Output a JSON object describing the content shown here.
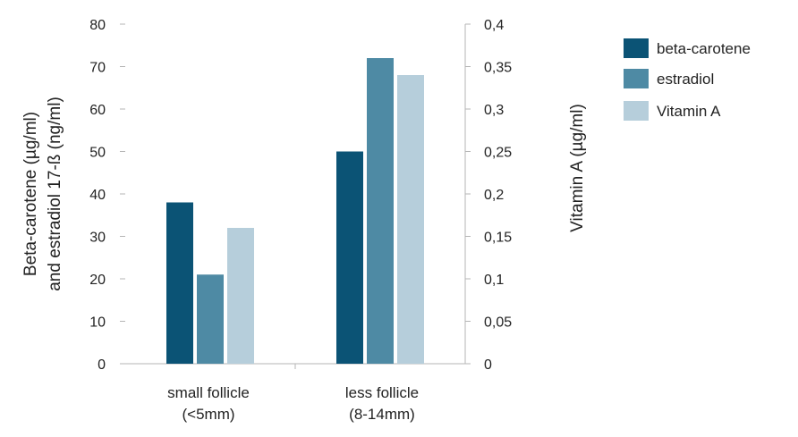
{
  "chart_data": {
    "type": "bar",
    "categories": [
      [
        "small follicle",
        "(<5mm)"
      ],
      [
        "less  follicle",
        "(8-14mm)"
      ]
    ],
    "series": [
      {
        "name": "beta-carotene",
        "axis": "left",
        "values": [
          38,
          50
        ],
        "color": "#0b5375"
      },
      {
        "name": "estradiol",
        "axis": "left",
        "values": [
          21,
          72
        ],
        "color": "#4e8aa4"
      },
      {
        "name": "Vitamin A",
        "axis": "right",
        "values": [
          0.16,
          0.34
        ],
        "color": "#b6cedb"
      }
    ],
    "y_left": {
      "label": [
        "Beta-carotene (µg/ml)",
        "and estradiol 17-ß (ng/ml)"
      ],
      "range": [
        0,
        80
      ],
      "ticks": [
        "0",
        "10",
        "20",
        "30",
        "40",
        "50",
        "60",
        "70",
        "80"
      ]
    },
    "y_right": {
      "label": "Vitamin A (µg/ml)",
      "range": [
        0,
        0.4
      ],
      "ticks": [
        "0",
        "0,05",
        "0,1",
        "0,15",
        "0,2",
        "0,25",
        "0,3",
        "0,35",
        "0,4"
      ]
    },
    "grid": false,
    "legend": "right"
  }
}
